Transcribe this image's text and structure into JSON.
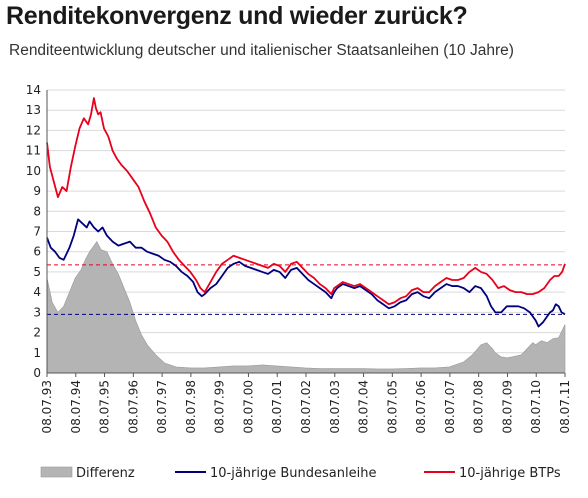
{
  "chart_data": {
    "type": "line",
    "title": "Renditekonvergenz und wieder zurück?",
    "subtitle": "Renditeentwicklung deutscher und italienischer Staatsanleihen (10 Jahre)",
    "xlabel": "",
    "ylabel": "",
    "ylim": [
      0,
      14
    ],
    "yticks": [
      0,
      1,
      2,
      3,
      4,
      5,
      6,
      7,
      8,
      9,
      10,
      11,
      12,
      13,
      14
    ],
    "x_ticks": [
      "08.07.93",
      "08.07.94",
      "08.07.95",
      "08.07.96",
      "08.07.97",
      "08.07.98",
      "08.07.99",
      "08.07.00",
      "08.07.01",
      "08.07.02",
      "08.07.03",
      "08.07.04",
      "08.07.05",
      "08.07.06",
      "08.07.07",
      "08.07.08",
      "08.07.09",
      "08.07.10",
      "08.07.11"
    ],
    "x_range": [
      1993.52,
      2011.52
    ],
    "grid": "horizontal",
    "legend_position": "bottom",
    "reference_lines": [
      {
        "y": 5.35,
        "color": "#e8001c",
        "style": "dashed"
      },
      {
        "y": 2.9,
        "color": "#00007f",
        "style": "dashed"
      }
    ],
    "series": [
      {
        "name": "Differenz",
        "style": "area",
        "color": "#b4b4b4",
        "x": [
          1993.52,
          1993.7,
          1993.9,
          1994.1,
          1994.3,
          1994.5,
          1994.7,
          1994.85,
          1995.0,
          1995.15,
          1995.25,
          1995.4,
          1995.6,
          1995.8,
          1996.0,
          1996.2,
          1996.4,
          1996.6,
          1996.8,
          1997.0,
          1997.3,
          1997.6,
          1998.0,
          1998.5,
          1999.0,
          1999.5,
          2000.0,
          2000.5,
          2001.0,
          2001.5,
          2002.0,
          2002.5,
          2003.0,
          2003.5,
          2004.0,
          2004.5,
          2005.0,
          2005.5,
          2006.0,
          2006.5,
          2007.0,
          2007.5,
          2008.0,
          2008.3,
          2008.6,
          2008.8,
          2009.0,
          2009.1,
          2009.3,
          2009.5,
          2009.7,
          2010.0,
          2010.2,
          2010.4,
          2010.5,
          2010.7,
          2010.9,
          2011.1,
          2011.3,
          2011.52
        ],
        "values": [
          4.7,
          3.5,
          3.0,
          3.3,
          4.0,
          4.7,
          5.1,
          5.6,
          6.0,
          6.3,
          6.5,
          6.1,
          6.0,
          5.4,
          4.9,
          4.2,
          3.5,
          2.6,
          1.9,
          1.4,
          0.9,
          0.5,
          0.3,
          0.25,
          0.25,
          0.3,
          0.35,
          0.35,
          0.4,
          0.35,
          0.3,
          0.25,
          0.22,
          0.22,
          0.22,
          0.22,
          0.2,
          0.2,
          0.22,
          0.25,
          0.25,
          0.3,
          0.55,
          0.9,
          1.4,
          1.5,
          1.2,
          1.0,
          0.8,
          0.75,
          0.8,
          0.9,
          1.2,
          1.5,
          1.4,
          1.6,
          1.5,
          1.7,
          1.75,
          2.4
        ]
      },
      {
        "name": "10-jährige Bundesanleihe",
        "style": "line",
        "color": "#00007f",
        "x": [
          1993.52,
          1993.65,
          1993.8,
          1993.95,
          1994.1,
          1994.3,
          1994.45,
          1994.6,
          1994.75,
          1994.9,
          1995.0,
          1995.15,
          1995.3,
          1995.45,
          1995.6,
          1995.8,
          1996.0,
          1996.2,
          1996.4,
          1996.6,
          1996.8,
          1997.0,
          1997.2,
          1997.4,
          1997.6,
          1997.8,
          1998.0,
          1998.2,
          1998.4,
          1998.6,
          1998.75,
          1998.9,
          1999.0,
          1999.2,
          1999.4,
          1999.6,
          1999.8,
          2000.0,
          2000.2,
          2000.4,
          2000.6,
          2000.8,
          2001.0,
          2001.2,
          2001.4,
          2001.6,
          2001.8,
          2002.0,
          2002.2,
          2002.4,
          2002.6,
          2002.8,
          2003.0,
          2003.2,
          2003.4,
          2003.5,
          2003.6,
          2003.8,
          2004.0,
          2004.2,
          2004.4,
          2004.6,
          2004.8,
          2005.0,
          2005.2,
          2005.4,
          2005.6,
          2005.8,
          2006.0,
          2006.2,
          2006.4,
          2006.6,
          2006.8,
          2007.0,
          2007.2,
          2007.4,
          2007.6,
          2007.8,
          2008.0,
          2008.2,
          2008.4,
          2008.6,
          2008.8,
          2008.95,
          2009.1,
          2009.3,
          2009.5,
          2009.7,
          2009.9,
          2010.1,
          2010.3,
          2010.5,
          2010.6,
          2010.75,
          2010.9,
          2011.0,
          2011.1,
          2011.2,
          2011.3,
          2011.4,
          2011.52
        ],
        "values": [
          6.7,
          6.2,
          6.0,
          5.7,
          5.6,
          6.2,
          6.8,
          7.6,
          7.4,
          7.2,
          7.5,
          7.2,
          7.0,
          7.2,
          6.8,
          6.5,
          6.3,
          6.4,
          6.5,
          6.2,
          6.2,
          6.0,
          5.9,
          5.8,
          5.6,
          5.5,
          5.3,
          5.0,
          4.8,
          4.5,
          4.0,
          3.8,
          3.9,
          4.2,
          4.4,
          4.8,
          5.2,
          5.4,
          5.5,
          5.3,
          5.2,
          5.1,
          5.0,
          4.9,
          5.1,
          5.0,
          4.7,
          5.1,
          5.2,
          4.9,
          4.6,
          4.4,
          4.2,
          4.0,
          3.7,
          4.0,
          4.2,
          4.4,
          4.3,
          4.2,
          4.3,
          4.1,
          3.9,
          3.6,
          3.4,
          3.2,
          3.3,
          3.5,
          3.6,
          3.9,
          4.0,
          3.8,
          3.7,
          4.0,
          4.2,
          4.4,
          4.3,
          4.3,
          4.2,
          4.0,
          4.3,
          4.2,
          3.8,
          3.3,
          3.0,
          3.0,
          3.3,
          3.3,
          3.3,
          3.2,
          3.0,
          2.6,
          2.3,
          2.5,
          2.8,
          3.0,
          3.1,
          3.4,
          3.3,
          3.0,
          2.9
        ]
      },
      {
        "name": "10-jährige BTPs",
        "style": "line",
        "color": "#e8001c",
        "x": [
          1993.52,
          1993.62,
          1993.75,
          1993.9,
          1994.05,
          1994.2,
          1994.35,
          1994.5,
          1994.65,
          1994.8,
          1994.95,
          1995.05,
          1995.15,
          1995.22,
          1995.3,
          1995.38,
          1995.5,
          1995.65,
          1995.8,
          1995.95,
          1996.1,
          1996.3,
          1996.5,
          1996.7,
          1996.9,
          1997.1,
          1997.3,
          1997.5,
          1997.7,
          1997.9,
          1998.1,
          1998.3,
          1998.5,
          1998.7,
          1998.85,
          1999.0,
          1999.2,
          1999.4,
          1999.6,
          1999.8,
          2000.0,
          2000.2,
          2000.4,
          2000.6,
          2000.8,
          2001.0,
          2001.2,
          2001.4,
          2001.6,
          2001.8,
          2002.0,
          2002.2,
          2002.4,
          2002.6,
          2002.8,
          2003.0,
          2003.2,
          2003.4,
          2003.5,
          2003.6,
          2003.8,
          2004.0,
          2004.2,
          2004.4,
          2004.6,
          2004.8,
          2005.0,
          2005.2,
          2005.4,
          2005.6,
          2005.8,
          2006.0,
          2006.2,
          2006.4,
          2006.6,
          2006.8,
          2007.0,
          2007.2,
          2007.4,
          2007.6,
          2007.8,
          2008.0,
          2008.2,
          2008.4,
          2008.6,
          2008.8,
          2009.0,
          2009.2,
          2009.4,
          2009.6,
          2009.8,
          2010.0,
          2010.2,
          2010.4,
          2010.6,
          2010.8,
          2011.0,
          2011.15,
          2011.3,
          2011.42,
          2011.52
        ],
        "values": [
          11.4,
          10.2,
          9.5,
          8.7,
          9.2,
          9.0,
          10.2,
          11.2,
          12.1,
          12.6,
          12.3,
          12.8,
          13.6,
          13.1,
          12.8,
          12.9,
          12.1,
          11.7,
          11.0,
          10.6,
          10.3,
          10.0,
          9.6,
          9.2,
          8.5,
          7.9,
          7.2,
          6.8,
          6.5,
          6.0,
          5.6,
          5.3,
          5.0,
          4.6,
          4.2,
          4.0,
          4.5,
          5.0,
          5.4,
          5.6,
          5.8,
          5.7,
          5.6,
          5.5,
          5.4,
          5.3,
          5.2,
          5.4,
          5.3,
          5.0,
          5.4,
          5.5,
          5.2,
          4.9,
          4.7,
          4.4,
          4.2,
          3.9,
          4.2,
          4.3,
          4.5,
          4.4,
          4.3,
          4.4,
          4.2,
          4.0,
          3.8,
          3.6,
          3.4,
          3.5,
          3.7,
          3.8,
          4.1,
          4.2,
          4.0,
          4.0,
          4.3,
          4.5,
          4.7,
          4.6,
          4.6,
          4.7,
          5.0,
          5.2,
          5.0,
          4.9,
          4.6,
          4.2,
          4.3,
          4.1,
          4.0,
          4.0,
          3.9,
          3.9,
          4.0,
          4.2,
          4.6,
          4.8,
          4.8,
          5.0,
          5.4
        ]
      }
    ]
  }
}
